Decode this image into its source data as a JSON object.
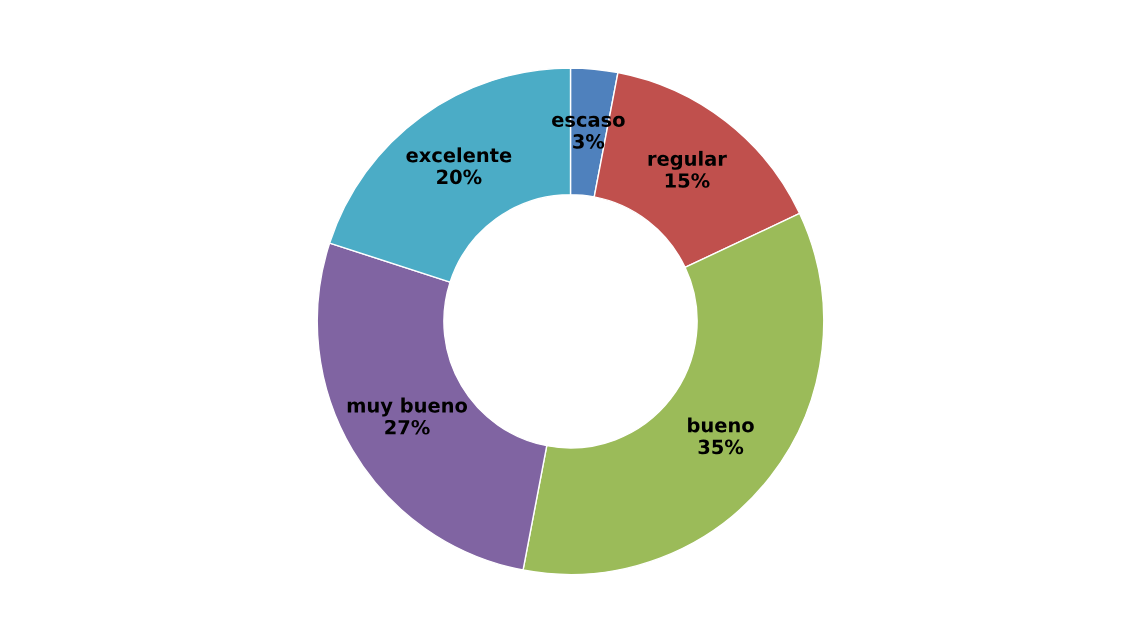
{
  "chart_data": {
    "type": "donut",
    "categories": [
      "escaso",
      "regular",
      "bueno",
      "muy bueno",
      "excelente"
    ],
    "values": [
      3,
      15,
      35,
      27,
      20
    ],
    "value_labels": [
      "3%",
      "15%",
      "35%",
      "27%",
      "20%"
    ],
    "colors": [
      "#4f81bd",
      "#c0504d",
      "#9bbb59",
      "#8064a2",
      "#4bacc6"
    ],
    "legend": false
  }
}
